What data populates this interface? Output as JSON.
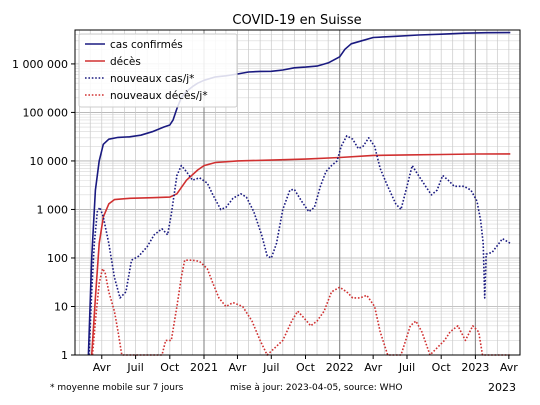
{
  "chart_data": {
    "type": "line",
    "title": "COVID-19 en Suisse",
    "y_scale": "log",
    "ylim": [
      1,
      5000000
    ],
    "xlim": [
      "2020-01-20",
      "2023-05-01"
    ],
    "y_ticks": [
      {
        "value": 1,
        "label": "1"
      },
      {
        "value": 10,
        "label": "10"
      },
      {
        "value": 100,
        "label": "100"
      },
      {
        "value": 1000,
        "label": "1 000"
      },
      {
        "value": 10000,
        "label": "10 000"
      },
      {
        "value": 100000,
        "label": "100 000"
      },
      {
        "value": 1000000,
        "label": "1 000 000"
      }
    ],
    "x_ticks": [
      {
        "date": "2020-04-01",
        "label": "Avr"
      },
      {
        "date": "2020-07-01",
        "label": "Juil"
      },
      {
        "date": "2020-10-01",
        "label": "Oct"
      },
      {
        "date": "2021-01-01",
        "label": "2021"
      },
      {
        "date": "2021-04-01",
        "label": "Avr"
      },
      {
        "date": "2021-07-01",
        "label": "Juil"
      },
      {
        "date": "2021-10-01",
        "label": "Oct"
      },
      {
        "date": "2022-01-01",
        "label": "2022"
      },
      {
        "date": "2022-04-01",
        "label": "Avr"
      },
      {
        "date": "2022-07-01",
        "label": "Juil"
      },
      {
        "date": "2022-10-01",
        "label": "Oct"
      },
      {
        "date": "2023-01-01",
        "label": "2023"
      },
      {
        "date": "2023-04-01",
        "label": "Avr"
      }
    ],
    "x_extra_label": "2023",
    "grid": true,
    "legend_position": "top-left",
    "series": [
      {
        "name": "cas confirmés",
        "color": "#1a1a80",
        "style": "solid",
        "points": [
          [
            "2020-02-25",
            1
          ],
          [
            "2020-03-05",
            100
          ],
          [
            "2020-03-15",
            2500
          ],
          [
            "2020-03-25",
            10000
          ],
          [
            "2020-04-05",
            22000
          ],
          [
            "2020-04-20",
            28000
          ],
          [
            "2020-05-15",
            30500
          ],
          [
            "2020-06-15",
            31500
          ],
          [
            "2020-07-15",
            34000
          ],
          [
            "2020-08-15",
            40000
          ],
          [
            "2020-09-15",
            50000
          ],
          [
            "2020-10-01",
            55000
          ],
          [
            "2020-10-10",
            70000
          ],
          [
            "2020-10-20",
            120000
          ],
          [
            "2020-11-01",
            200000
          ],
          [
            "2020-11-15",
            270000
          ],
          [
            "2020-12-01",
            340000
          ],
          [
            "2020-12-15",
            400000
          ],
          [
            "2021-01-01",
            460000
          ],
          [
            "2021-02-01",
            540000
          ],
          [
            "2021-03-01",
            570000
          ],
          [
            "2021-04-01",
            620000
          ],
          [
            "2021-05-01",
            680000
          ],
          [
            "2021-06-01",
            700000
          ],
          [
            "2021-07-01",
            705000
          ],
          [
            "2021-08-01",
            750000
          ],
          [
            "2021-09-01",
            830000
          ],
          [
            "2021-10-01",
            860000
          ],
          [
            "2021-11-01",
            900000
          ],
          [
            "2021-12-01",
            1050000
          ],
          [
            "2022-01-01",
            1400000
          ],
          [
            "2022-01-15",
            2000000
          ],
          [
            "2022-02-01",
            2600000
          ],
          [
            "2022-03-01",
            3000000
          ],
          [
            "2022-04-01",
            3500000
          ],
          [
            "2022-06-01",
            3700000
          ],
          [
            "2022-08-01",
            3950000
          ],
          [
            "2022-10-01",
            4100000
          ],
          [
            "2022-12-01",
            4300000
          ],
          [
            "2023-02-01",
            4400000
          ],
          [
            "2023-04-05",
            4420000
          ]
        ]
      },
      {
        "name": "décès",
        "color": "#d03030",
        "style": "solid",
        "points": [
          [
            "2020-03-05",
            1
          ],
          [
            "2020-03-15",
            15
          ],
          [
            "2020-03-25",
            200
          ],
          [
            "2020-04-05",
            700
          ],
          [
            "2020-04-20",
            1300
          ],
          [
            "2020-05-05",
            1600
          ],
          [
            "2020-06-15",
            1700
          ],
          [
            "2020-08-15",
            1750
          ],
          [
            "2020-10-01",
            1800
          ],
          [
            "2020-10-20",
            2100
          ],
          [
            "2020-11-15",
            4000
          ],
          [
            "2020-12-15",
            6500
          ],
          [
            "2021-01-01",
            8000
          ],
          [
            "2021-02-01",
            9300
          ],
          [
            "2021-04-01",
            10000
          ],
          [
            "2021-07-01",
            10400
          ],
          [
            "2021-10-01",
            10900
          ],
          [
            "2022-01-01",
            11800
          ],
          [
            "2022-04-01",
            13000
          ],
          [
            "2022-07-01",
            13300
          ],
          [
            "2022-10-01",
            13600
          ],
          [
            "2023-01-01",
            13900
          ],
          [
            "2023-04-05",
            14000
          ]
        ]
      },
      {
        "name": "nouveaux cas/j*",
        "color": "#1a1a80",
        "style": "dotted",
        "points": [
          [
            "2020-02-27",
            1
          ],
          [
            "2020-03-05",
            20
          ],
          [
            "2020-03-12",
            200
          ],
          [
            "2020-03-20",
            900
          ],
          [
            "2020-03-27",
            1100
          ],
          [
            "2020-04-05",
            700
          ],
          [
            "2020-04-20",
            200
          ],
          [
            "2020-05-05",
            40
          ],
          [
            "2020-05-20",
            15
          ],
          [
            "2020-06-05",
            20
          ],
          [
            "2020-06-20",
            90
          ],
          [
            "2020-07-10",
            110
          ],
          [
            "2020-08-01",
            170
          ],
          [
            "2020-08-20",
            300
          ],
          [
            "2020-09-10",
            400
          ],
          [
            "2020-09-25",
            300
          ],
          [
            "2020-10-05",
            800
          ],
          [
            "2020-10-20",
            5000
          ],
          [
            "2020-11-01",
            8000
          ],
          [
            "2020-11-15",
            6000
          ],
          [
            "2020-12-01",
            4000
          ],
          [
            "2020-12-20",
            4500
          ],
          [
            "2021-01-10",
            3500
          ],
          [
            "2021-01-25",
            2000
          ],
          [
            "2021-02-15",
            1000
          ],
          [
            "2021-03-01",
            1100
          ],
          [
            "2021-03-20",
            1700
          ],
          [
            "2021-04-10",
            2100
          ],
          [
            "2021-04-25",
            1800
          ],
          [
            "2021-05-15",
            900
          ],
          [
            "2021-06-05",
            300
          ],
          [
            "2021-06-20",
            110
          ],
          [
            "2021-07-01",
            100
          ],
          [
            "2021-07-15",
            200
          ],
          [
            "2021-08-01",
            1000
          ],
          [
            "2021-08-20",
            2500
          ],
          [
            "2021-09-01",
            2600
          ],
          [
            "2021-09-20",
            1500
          ],
          [
            "2021-10-10",
            900
          ],
          [
            "2021-10-25",
            1100
          ],
          [
            "2021-11-10",
            3000
          ],
          [
            "2021-11-25",
            6000
          ],
          [
            "2021-12-10",
            8000
          ],
          [
            "2021-12-25",
            10000
          ],
          [
            "2022-01-05",
            20000
          ],
          [
            "2022-01-20",
            33000
          ],
          [
            "2022-02-05",
            28000
          ],
          [
            "2022-02-20",
            18000
          ],
          [
            "2022-03-05",
            20000
          ],
          [
            "2022-03-20",
            30000
          ],
          [
            "2022-04-05",
            20000
          ],
          [
            "2022-04-20",
            7000
          ],
          [
            "2022-05-10",
            3000
          ],
          [
            "2022-06-01",
            1300
          ],
          [
            "2022-06-15",
            1000
          ],
          [
            "2022-07-01",
            3000
          ],
          [
            "2022-07-15",
            8000
          ],
          [
            "2022-08-01",
            5000
          ],
          [
            "2022-08-20",
            3000
          ],
          [
            "2022-09-05",
            2000
          ],
          [
            "2022-09-20",
            2500
          ],
          [
            "2022-10-05",
            5000
          ],
          [
            "2022-10-20",
            4000
          ],
          [
            "2022-11-05",
            3000
          ],
          [
            "2022-12-01",
            3000
          ],
          [
            "2022-12-20",
            2500
          ],
          [
            "2023-01-05",
            1500
          ],
          [
            "2023-01-15",
            600
          ],
          [
            "2023-01-22",
            200
          ],
          [
            "2023-01-26",
            15
          ],
          [
            "2023-01-30",
            120
          ],
          [
            "2023-02-15",
            130
          ],
          [
            "2023-03-01",
            180
          ],
          [
            "2023-03-15",
            250
          ],
          [
            "2023-04-05",
            200
          ]
        ]
      },
      {
        "name": "nouveaux décès/j*",
        "color": "#d03030",
        "style": "dotted",
        "points": [
          [
            "2020-03-07",
            1
          ],
          [
            "2020-03-15",
            5
          ],
          [
            "2020-03-25",
            30
          ],
          [
            "2020-04-03",
            60
          ],
          [
            "2020-04-10",
            50
          ],
          [
            "2020-04-20",
            20
          ],
          [
            "2020-05-05",
            8
          ],
          [
            "2020-05-15",
            3
          ],
          [
            "2020-05-25",
            1
          ],
          [
            "2020-09-10",
            1
          ],
          [
            "2020-09-20",
            2
          ],
          [
            "2020-10-05",
            2
          ],
          [
            "2020-10-20",
            10
          ],
          [
            "2020-11-01",
            40
          ],
          [
            "2020-11-10",
            90
          ],
          [
            "2020-12-01",
            90
          ],
          [
            "2020-12-20",
            85
          ],
          [
            "2021-01-10",
            60
          ],
          [
            "2021-01-25",
            30
          ],
          [
            "2021-02-10",
            15
          ],
          [
            "2021-03-01",
            10
          ],
          [
            "2021-03-20",
            12
          ],
          [
            "2021-04-15",
            10
          ],
          [
            "2021-05-10",
            5
          ],
          [
            "2021-06-01",
            2
          ],
          [
            "2021-06-20",
            1
          ],
          [
            "2021-08-01",
            2
          ],
          [
            "2021-08-25",
            5
          ],
          [
            "2021-09-10",
            8
          ],
          [
            "2021-09-25",
            6
          ],
          [
            "2021-10-15",
            4
          ],
          [
            "2021-11-01",
            5
          ],
          [
            "2021-11-20",
            8
          ],
          [
            "2021-12-10",
            20
          ],
          [
            "2022-01-01",
            25
          ],
          [
            "2022-01-20",
            20
          ],
          [
            "2022-02-05",
            15
          ],
          [
            "2022-02-25",
            15
          ],
          [
            "2022-03-15",
            17
          ],
          [
            "2022-04-05",
            10
          ],
          [
            "2022-04-20",
            3
          ],
          [
            "2022-05-10",
            1
          ],
          [
            "2022-06-15",
            1
          ],
          [
            "2022-07-10",
            4
          ],
          [
            "2022-07-25",
            5
          ],
          [
            "2022-08-10",
            3
          ],
          [
            "2022-09-01",
            1
          ],
          [
            "2022-10-10",
            2
          ],
          [
            "2022-10-25",
            3
          ],
          [
            "2022-11-15",
            4
          ],
          [
            "2022-12-05",
            2
          ],
          [
            "2022-12-25",
            4
          ],
          [
            "2023-01-10",
            3
          ],
          [
            "2023-01-20",
            1
          ],
          [
            "2023-03-20",
            1
          ],
          [
            "2023-04-05",
            1
          ]
        ]
      }
    ],
    "footnotes": {
      "left": "* moyenne mobile sur 7 jours",
      "right": "mise à jour: 2023-04-05, source: WHO"
    }
  }
}
